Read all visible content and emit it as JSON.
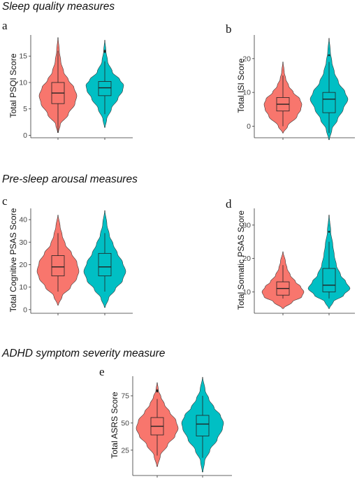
{
  "sections": {
    "sleep": "Sleep quality measures",
    "arousal": "Pre-sleep arousal measures",
    "adhd": "ADHD symptom severity measure"
  },
  "chart_data": [
    {
      "id": "a",
      "type": "violin",
      "panel_label": "a",
      "ylabel": "Total PSQI Score",
      "ylim": [
        -0.2,
        19
      ],
      "yticks": [
        0,
        5,
        10,
        15
      ],
      "groups": [
        {
          "color": "#f8766d",
          "min": 0.5,
          "max": 18.5,
          "q1": 6,
          "median": 8,
          "q3": 10,
          "whisker_low": 0.5,
          "whisker_high": 16,
          "outliers": [],
          "density": [
            [
              0.5,
              0.02
            ],
            [
              2,
              0.12
            ],
            [
              4,
              0.55
            ],
            [
              6,
              0.9
            ],
            [
              7.5,
              1.0
            ],
            [
              9,
              0.85
            ],
            [
              10.5,
              0.55
            ],
            [
              12,
              0.3
            ],
            [
              14,
              0.15
            ],
            [
              16,
              0.07
            ],
            [
              18.5,
              0.01
            ]
          ]
        },
        {
          "color": "#00bfc4",
          "min": 1.5,
          "max": 18,
          "q1": 7.5,
          "median": 9,
          "q3": 10.2,
          "whisker_low": 4,
          "whisker_high": 14,
          "outliers": [
            15.8,
            16
          ],
          "density": [
            [
              1.5,
              0.02
            ],
            [
              3,
              0.1
            ],
            [
              5,
              0.35
            ],
            [
              7,
              0.7
            ],
            [
              8.5,
              0.95
            ],
            [
              9.5,
              1.0
            ],
            [
              10.5,
              0.8
            ],
            [
              12,
              0.4
            ],
            [
              14,
              0.15
            ],
            [
              16,
              0.06
            ],
            [
              18,
              0.01
            ]
          ]
        }
      ]
    },
    {
      "id": "b",
      "type": "violin",
      "panel_label": "b",
      "ylabel": "Total ISI Score",
      "ylim": [
        -3,
        27
      ],
      "yticks": [
        0,
        10,
        20
      ],
      "groups": [
        {
          "color": "#f8766d",
          "min": -2,
          "max": 19,
          "q1": 4.5,
          "median": 6.5,
          "q3": 8.5,
          "whisker_low": 0,
          "whisker_high": 15,
          "outliers": [],
          "density": [
            [
              -2,
              0.02
            ],
            [
              0,
              0.25
            ],
            [
              3,
              0.75
            ],
            [
              5,
              0.95
            ],
            [
              6.5,
              1.0
            ],
            [
              8,
              0.9
            ],
            [
              10,
              0.55
            ],
            [
              12,
              0.3
            ],
            [
              14,
              0.15
            ],
            [
              16,
              0.07
            ],
            [
              19,
              0.01
            ]
          ]
        },
        {
          "color": "#00bfc4",
          "min": -4,
          "max": 26,
          "q1": 4,
          "median": 8,
          "q3": 10,
          "whisker_low": -2,
          "whisker_high": 19,
          "outliers": [
            21
          ],
          "density": [
            [
              -4,
              0.02
            ],
            [
              -1,
              0.15
            ],
            [
              2,
              0.45
            ],
            [
              5,
              0.75
            ],
            [
              8,
              1.0
            ],
            [
              10,
              0.85
            ],
            [
              13,
              0.5
            ],
            [
              16,
              0.28
            ],
            [
              19,
              0.15
            ],
            [
              22,
              0.07
            ],
            [
              26,
              0.01
            ]
          ]
        }
      ]
    },
    {
      "id": "c",
      "type": "violin",
      "panel_label": "c",
      "ylabel": "Total Cognitive PSAS Score",
      "ylim": [
        -1,
        45
      ],
      "yticks": [
        0,
        10,
        20,
        30,
        40
      ],
      "groups": [
        {
          "color": "#f8766d",
          "min": 2,
          "max": 42,
          "q1": 15,
          "median": 19,
          "q3": 24,
          "whisker_low": 8,
          "whisker_high": 34,
          "outliers": [],
          "density": [
            [
              2,
              0.02
            ],
            [
              6,
              0.2
            ],
            [
              10,
              0.6
            ],
            [
              14,
              0.9
            ],
            [
              17,
              1.0
            ],
            [
              21,
              0.9
            ],
            [
              25,
              0.65
            ],
            [
              29,
              0.35
            ],
            [
              33,
              0.2
            ],
            [
              37,
              0.1
            ],
            [
              42,
              0.01
            ]
          ]
        },
        {
          "color": "#00bfc4",
          "min": 1,
          "max": 44,
          "q1": 15,
          "median": 19,
          "q3": 25,
          "whisker_low": 8,
          "whisker_high": 34,
          "outliers": [],
          "density": [
            [
              1,
              0.02
            ],
            [
              5,
              0.18
            ],
            [
              9,
              0.5
            ],
            [
              13,
              0.85
            ],
            [
              17,
              1.0
            ],
            [
              21,
              0.85
            ],
            [
              25,
              0.6
            ],
            [
              29,
              0.4
            ],
            [
              33,
              0.22
            ],
            [
              38,
              0.1
            ],
            [
              44,
              0.01
            ]
          ]
        }
      ]
    },
    {
      "id": "d",
      "type": "violin",
      "panel_label": "d",
      "ylabel": "Total Somatic PSAS Score",
      "ylim": [
        4,
        35
      ],
      "yticks": [
        10,
        20,
        30
      ],
      "groups": [
        {
          "color": "#f8766d",
          "min": 5,
          "max": 22,
          "q1": 9,
          "median": 11,
          "q3": 13,
          "whisker_low": 8,
          "whisker_high": 18,
          "outliers": [],
          "density": [
            [
              5,
              0.03
            ],
            [
              7,
              0.45
            ],
            [
              8.5,
              0.9
            ],
            [
              10,
              1.0
            ],
            [
              11.5,
              0.85
            ],
            [
              13,
              0.6
            ],
            [
              15,
              0.35
            ],
            [
              17,
              0.2
            ],
            [
              19,
              0.12
            ],
            [
              22,
              0.01
            ]
          ]
        },
        {
          "color": "#00bfc4",
          "min": 5,
          "max": 33,
          "q1": 10,
          "median": 12,
          "q3": 17,
          "whisker_low": 8,
          "whisker_high": 25,
          "outliers": [
            28
          ],
          "density": [
            [
              5,
              0.02
            ],
            [
              7,
              0.2
            ],
            [
              9,
              0.7
            ],
            [
              11,
              1.0
            ],
            [
              13,
              0.8
            ],
            [
              15,
              0.55
            ],
            [
              18,
              0.35
            ],
            [
              21,
              0.25
            ],
            [
              24,
              0.18
            ],
            [
              28,
              0.08
            ],
            [
              33,
              0.01
            ]
          ]
        }
      ]
    },
    {
      "id": "e",
      "type": "violin",
      "panel_label": "e",
      "ylabel": "Total ASRS Score",
      "ylim": [
        3,
        93
      ],
      "yticks": [
        25,
        50,
        75
      ],
      "groups": [
        {
          "color": "#f8766d",
          "min": 10,
          "max": 87,
          "q1": 39,
          "median": 47,
          "q3": 55,
          "whisker_low": 20,
          "whisker_high": 72,
          "outliers": [
            79,
            80
          ],
          "density": [
            [
              10,
              0.02
            ],
            [
              20,
              0.15
            ],
            [
              30,
              0.5
            ],
            [
              38,
              0.85
            ],
            [
              45,
              1.0
            ],
            [
              52,
              0.9
            ],
            [
              60,
              0.6
            ],
            [
              67,
              0.35
            ],
            [
              74,
              0.18
            ],
            [
              80,
              0.06
            ],
            [
              87,
              0.01
            ]
          ]
        },
        {
          "color": "#00bfc4",
          "min": 5,
          "max": 92,
          "q1": 38,
          "median": 49,
          "q3": 57,
          "whisker_low": 18,
          "whisker_high": 75,
          "outliers": [],
          "density": [
            [
              5,
              0.02
            ],
            [
              15,
              0.1
            ],
            [
              25,
              0.35
            ],
            [
              35,
              0.7
            ],
            [
              45,
              0.95
            ],
            [
              50,
              1.0
            ],
            [
              57,
              0.85
            ],
            [
              64,
              0.55
            ],
            [
              72,
              0.3
            ],
            [
              80,
              0.12
            ],
            [
              92,
              0.01
            ]
          ]
        }
      ]
    }
  ]
}
